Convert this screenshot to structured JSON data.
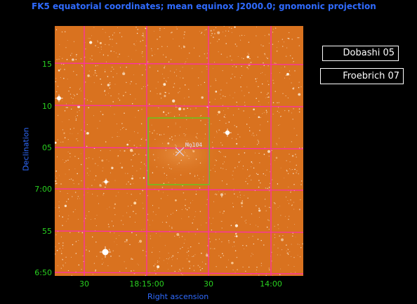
{
  "header": {
    "title": "FK5 equatorial coordinates; mean equinox J2000.0; gnomonic projection"
  },
  "axes": {
    "xlabel": "Right ascension",
    "ylabel": "Declination",
    "dec_ticks": [
      "15",
      "10",
      "05",
      "7:00",
      "55",
      "6:50"
    ],
    "ra_ticks": [
      "30",
      "18:15:00",
      "30",
      "14:00"
    ]
  },
  "overlay": {
    "object_label": "Mo104"
  },
  "catalogs": {
    "dobashi_label": "Dobashi 05",
    "froebrich_label": "Froebrich 07"
  },
  "colors": {
    "sky": "#d9721f",
    "grid": "#ff2bb0",
    "box": "#6cc21d",
    "tick_text": "#29d11f",
    "axis_text": "#2f6bff"
  }
}
